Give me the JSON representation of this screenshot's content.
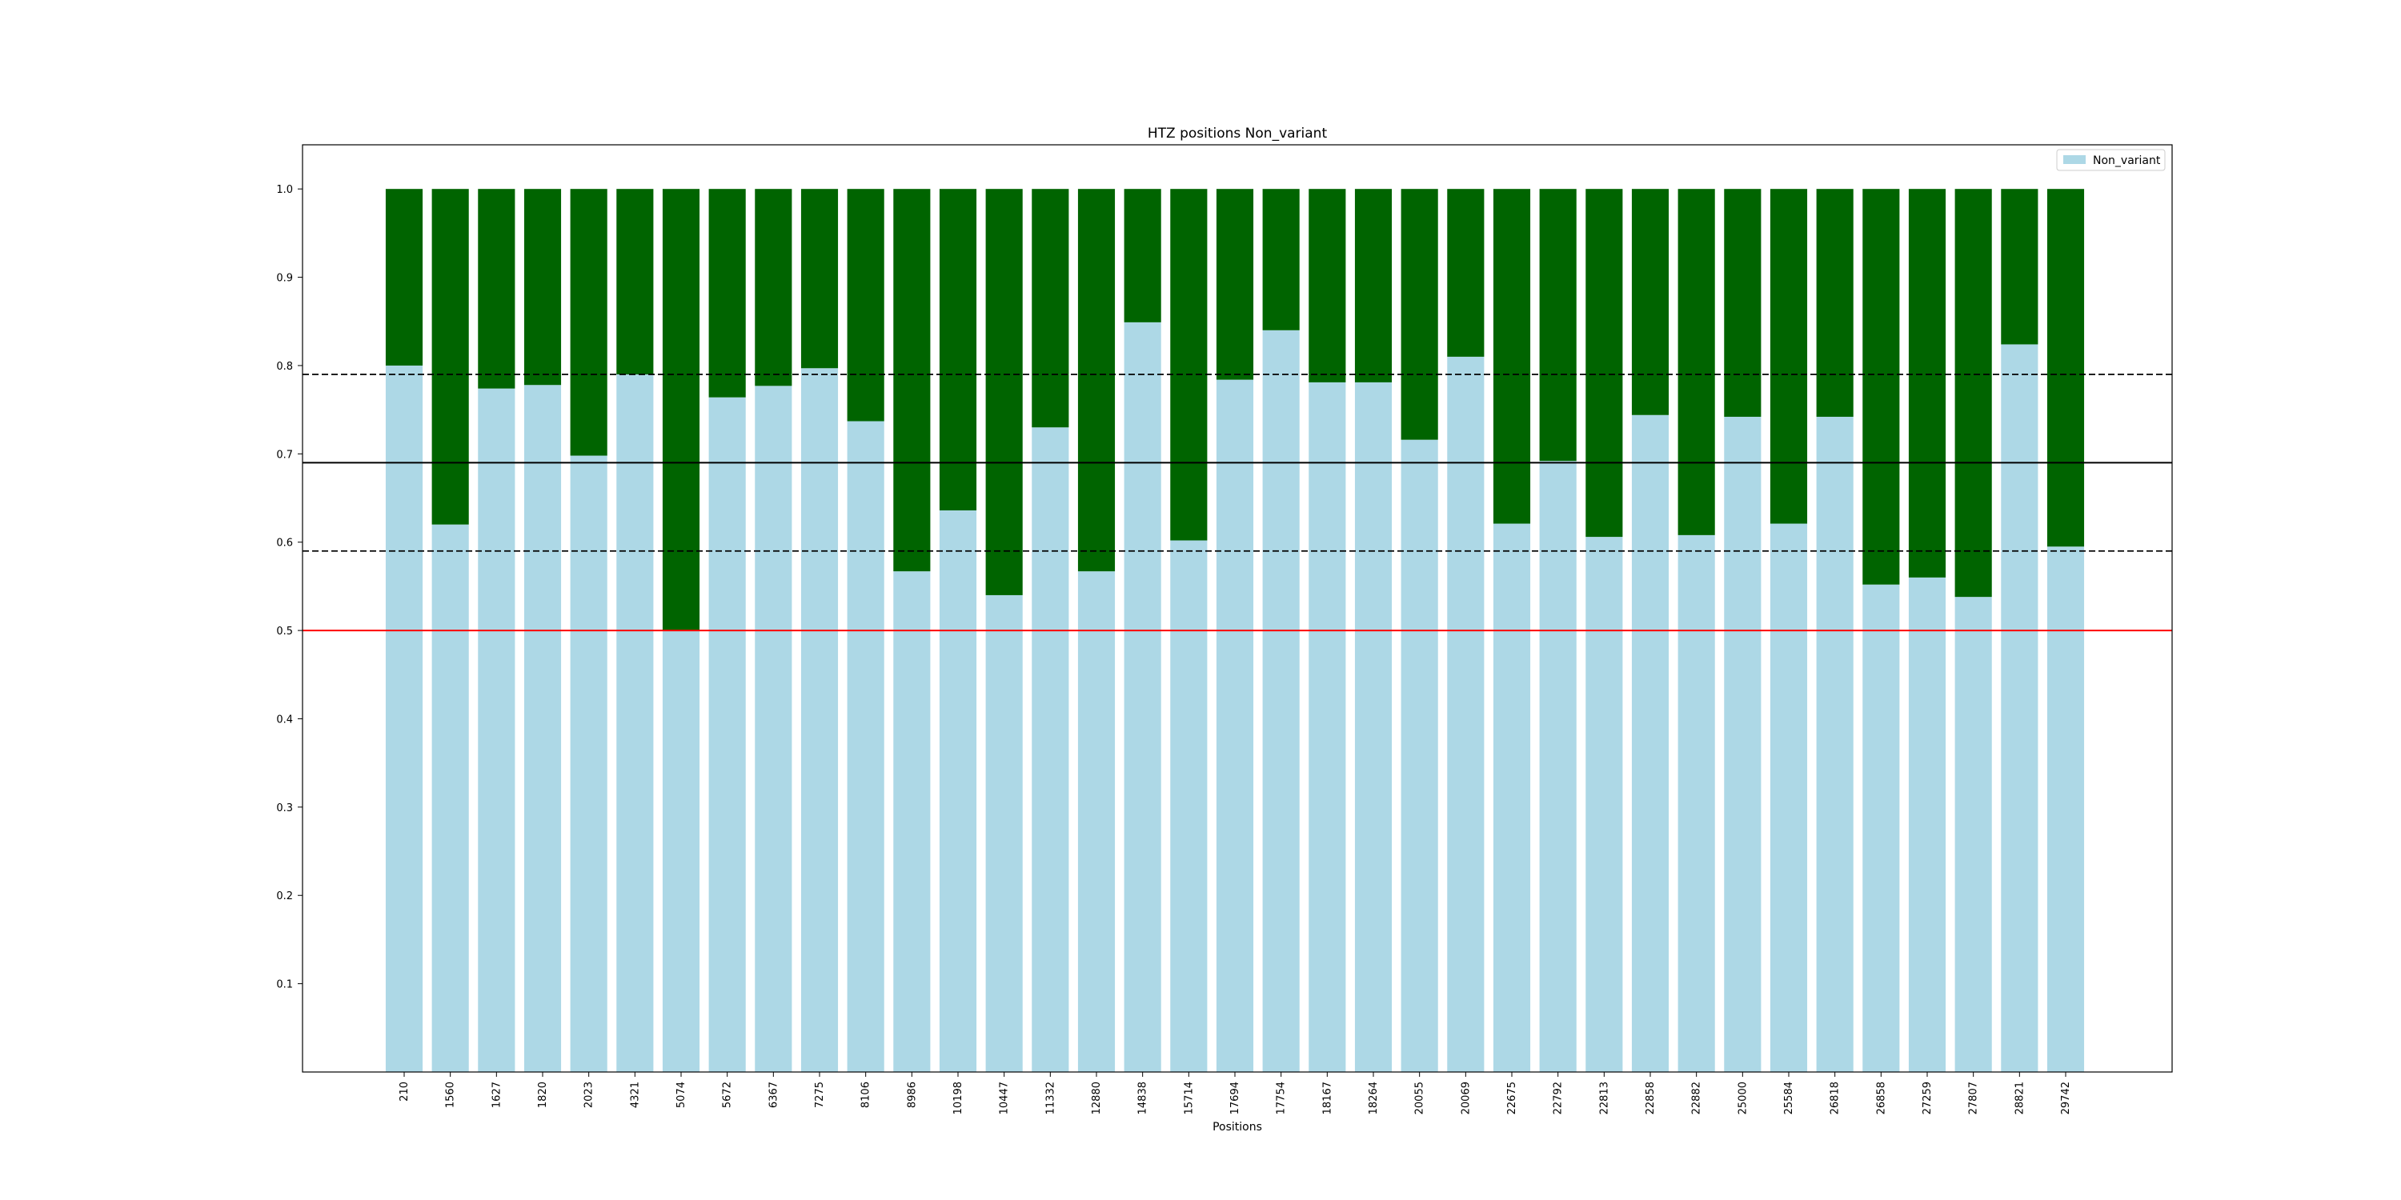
{
  "chart_data": {
    "type": "bar",
    "title": "HTZ positions Non_variant",
    "xlabel": "Positions",
    "ylabel": "",
    "ylim": [
      0,
      1.05
    ],
    "yticks": [
      0.1,
      0.2,
      0.3,
      0.4,
      0.5,
      0.6,
      0.7,
      0.8,
      0.9,
      1.0
    ],
    "grid": false,
    "legend_position": "top-right",
    "categories": [
      "210",
      "1560",
      "1627",
      "1820",
      "2023",
      "4321",
      "5074",
      "5672",
      "6367",
      "7275",
      "8106",
      "8986",
      "10198",
      "10447",
      "11332",
      "12880",
      "14838",
      "15714",
      "17694",
      "17754",
      "18167",
      "18264",
      "20055",
      "20069",
      "22675",
      "22792",
      "22813",
      "22858",
      "22882",
      "25000",
      "25584",
      "26818",
      "26858",
      "27259",
      "27807",
      "28821",
      "29742"
    ],
    "series": [
      {
        "name": "Non_variant",
        "color": "#add8e6",
        "values": [
          0.8,
          0.62,
          0.774,
          0.778,
          0.698,
          0.79,
          0.5,
          0.764,
          0.777,
          0.797,
          0.737,
          0.567,
          0.636,
          0.54,
          0.73,
          0.567,
          0.849,
          0.602,
          0.784,
          0.84,
          0.781,
          0.781,
          0.716,
          0.81,
          0.621,
          0.692,
          0.606,
          0.744,
          0.608,
          0.742,
          0.621,
          0.742,
          0.552,
          0.56,
          0.538,
          0.824,
          0.595
        ]
      },
      {
        "color": "#006400",
        "values": [
          0.2,
          0.38,
          0.226,
          0.222,
          0.302,
          0.21,
          0.5,
          0.236,
          0.223,
          0.203,
          0.263,
          0.433,
          0.364,
          0.46,
          0.27,
          0.433,
          0.151,
          0.398,
          0.216,
          0.16,
          0.219,
          0.219,
          0.284,
          0.19,
          0.379,
          0.308,
          0.394,
          0.256,
          0.392,
          0.258,
          0.379,
          0.258,
          0.448,
          0.44,
          0.462,
          0.176,
          0.405
        ]
      }
    ],
    "reference_lines": [
      {
        "y": 0.79,
        "color": "#000000",
        "style": "dashed"
      },
      {
        "y": 0.69,
        "color": "#000000",
        "style": "solid"
      },
      {
        "y": 0.59,
        "color": "#000000",
        "style": "dashed"
      },
      {
        "y": 0.5,
        "color": "#ff0000",
        "style": "solid"
      }
    ]
  }
}
